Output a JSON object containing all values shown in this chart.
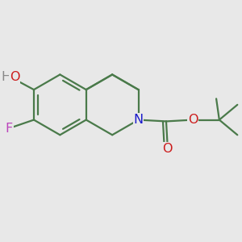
{
  "background_color": "#e8e8e8",
  "bond_color": "#4a7a4a",
  "bond_width": 1.6,
  "atom_colors": {
    "N": "#1a1acc",
    "O": "#cc1a1a",
    "F": "#bb44bb",
    "HO_gray": "#888888"
  },
  "font_size": 11.5,
  "xlim": [
    -2.0,
    3.2
  ],
  "ylim": [
    -2.0,
    2.0
  ]
}
